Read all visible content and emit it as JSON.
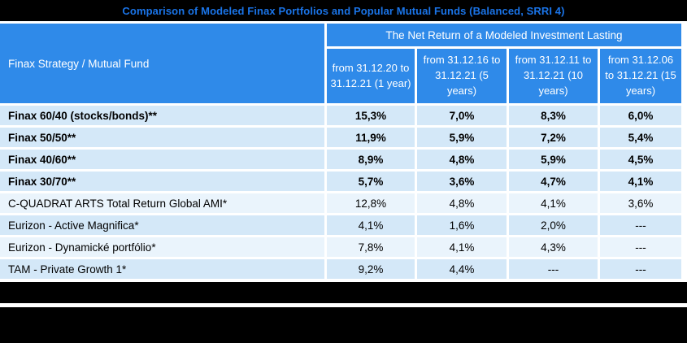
{
  "page_title": "Comparison of Modeled Finax Portfolios and Popular Mutual Funds (Balanced, SRRI 4)",
  "chart_data": {
    "type": "table",
    "title": "Comparison of Modeled Finax Portfolios and Popular Mutual Funds (Balanced, SRRI 4)",
    "corner_header": "Finax Strategy / Mutual Fund",
    "group_header": "The Net Return of a Modeled Investment Lasting",
    "column_headers": [
      "from 31.12.20 to 31.12.21 (1 year)",
      "from 31.12.16 to 31.12.21 (5 years)",
      "from 31.12.11 to 31.12.21 (10 years)",
      "from 31.12.06 to 31.12.21 (15 years)"
    ],
    "rows": [
      {
        "name": "Finax 60/40 (stocks/bonds)**",
        "values": [
          "15,3%",
          "7,0%",
          "8,3%",
          "6,0%"
        ]
      },
      {
        "name": "Finax 50/50**",
        "values": [
          "11,9%",
          "5,9%",
          "7,2%",
          "5,4%"
        ]
      },
      {
        "name": "Finax 40/60**",
        "values": [
          "8,9%",
          "4,8%",
          "5,9%",
          "4,5%"
        ]
      },
      {
        "name": "Finax 30/70**",
        "values": [
          "5,7%",
          "3,6%",
          "4,7%",
          "4,1%"
        ]
      },
      {
        "name": "C-QUADRAT ARTS Total Return Global AMI*",
        "values": [
          "12,8%",
          "4,8%",
          "4,1%",
          "3,6%"
        ]
      },
      {
        "name": "Eurizon - Active Magnifica*",
        "values": [
          "4,1%",
          "1,6%",
          "2,0%",
          "---"
        ]
      },
      {
        "name": "Eurizon - Dynamické portfólio*",
        "values": [
          "7,8%",
          "4,1%",
          "4,3%",
          "---"
        ]
      },
      {
        "name": "TAM - Private Growth 1*",
        "values": [
          "9,2%",
          "4,4%",
          "---",
          "---"
        ]
      }
    ]
  },
  "colors": {
    "title_bar_bg": "#000000",
    "title_text": "#1a74e8",
    "header_bg": "#2f8ae9",
    "header_text": "#ffffff",
    "row_blue": "#d4e8f8",
    "row_light": "#eaf4fc",
    "separator": "#ffffff",
    "bottom_bands": "#000000"
  }
}
